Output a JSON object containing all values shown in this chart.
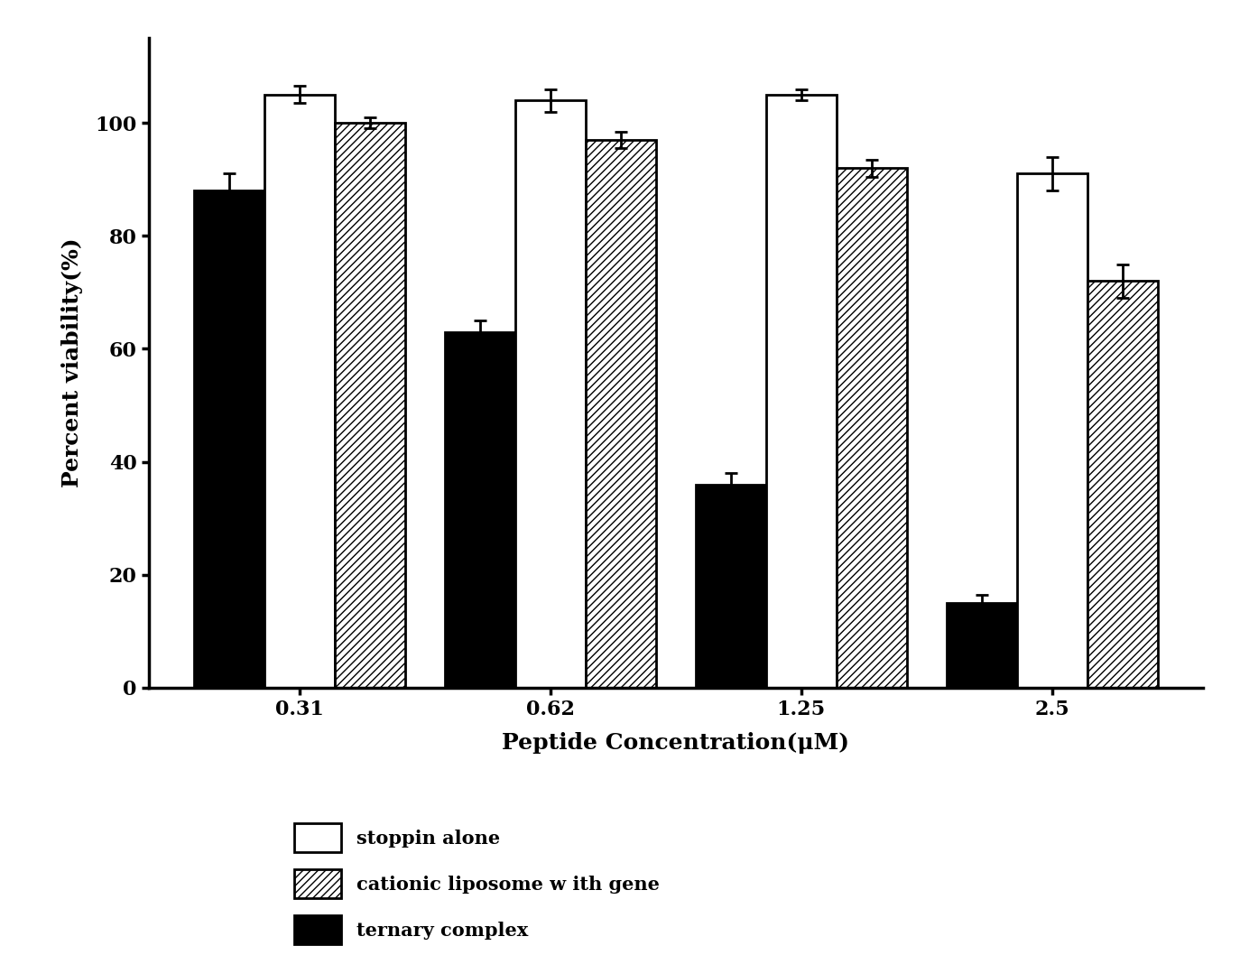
{
  "categories": [
    "0.31",
    "0.62",
    "1.25",
    "2.5"
  ],
  "series": {
    "ternary_complex": [
      88,
      63,
      36,
      15
    ],
    "stoppin_alone": [
      105,
      104,
      105,
      91
    ],
    "cationic_liposome": [
      100,
      97,
      92,
      72
    ]
  },
  "errors": {
    "ternary_complex": [
      3,
      2,
      2,
      1.5
    ],
    "stoppin_alone": [
      1.5,
      2,
      1,
      3
    ],
    "cationic_liposome": [
      1,
      1.5,
      1.5,
      3
    ]
  },
  "ylabel": "Percent viability(%)",
  "xlabel": "Peptide Concentration(μM)",
  "ylim": [
    0,
    115
  ],
  "yticks": [
    0,
    20,
    40,
    60,
    80,
    100
  ],
  "legend_labels": [
    "stoppin alone",
    "cationic liposome w ith gene",
    "ternary complex"
  ],
  "bar_width": 0.28,
  "colors": {
    "ternary_complex": "#000000",
    "stoppin_alone": "#ffffff",
    "cationic_liposome": "#ffffff"
  },
  "edgecolor": "#000000",
  "hatch_liposome": "////",
  "background_color": "#ffffff",
  "label_fontsize": 18,
  "tick_fontsize": 16,
  "legend_fontsize": 15
}
